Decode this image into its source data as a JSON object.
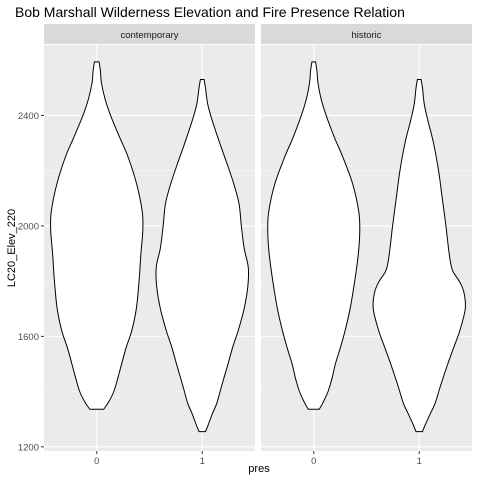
{
  "chart_data": {
    "type": "violin",
    "title": "Bob Marshall Wilderness Elevation and Fire Presence Relation",
    "xlabel": "pres",
    "ylabel": "LC20_Elev_220",
    "facet_variable_values": [
      "contemporary",
      "historic"
    ],
    "categories": [
      "0",
      "1"
    ],
    "ylim": [
      1185,
      2655
    ],
    "yticks": [
      1200,
      1600,
      2000,
      2400
    ],
    "grid": true,
    "panels": [
      {
        "facet": "contemporary",
        "violins": [
          {
            "category": "0",
            "min": 1336,
            "max": 2594,
            "profile": [
              [
                1336,
                0.15
              ],
              [
                1360,
                0.25
              ],
              [
                1400,
                0.37
              ],
              [
                1450,
                0.46
              ],
              [
                1500,
                0.54
              ],
              [
                1560,
                0.64
              ],
              [
                1620,
                0.76
              ],
              [
                1700,
                0.86
              ],
              [
                1800,
                0.92
              ],
              [
                1900,
                0.96
              ],
              [
                1980,
                1.0
              ],
              [
                2050,
                0.99
              ],
              [
                2150,
                0.87
              ],
              [
                2250,
                0.68
              ],
              [
                2320,
                0.5
              ],
              [
                2400,
                0.3
              ],
              [
                2460,
                0.18
              ],
              [
                2520,
                0.1
              ],
              [
                2560,
                0.08
              ],
              [
                2594,
                0.05
              ]
            ]
          },
          {
            "category": "1",
            "min": 1255,
            "max": 2530,
            "profile": [
              [
                1255,
                0.07
              ],
              [
                1280,
                0.13
              ],
              [
                1320,
                0.22
              ],
              [
                1360,
                0.32
              ],
              [
                1420,
                0.42
              ],
              [
                1500,
                0.56
              ],
              [
                1560,
                0.66
              ],
              [
                1620,
                0.78
              ],
              [
                1700,
                0.91
              ],
              [
                1780,
                0.99
              ],
              [
                1850,
                1.0
              ],
              [
                1920,
                0.91
              ],
              [
                2000,
                0.85
              ],
              [
                2080,
                0.8
              ],
              [
                2150,
                0.69
              ],
              [
                2220,
                0.55
              ],
              [
                2300,
                0.38
              ],
              [
                2380,
                0.22
              ],
              [
                2440,
                0.12
              ],
              [
                2500,
                0.07
              ],
              [
                2530,
                0.04
              ]
            ]
          }
        ]
      },
      {
        "facet": "historic",
        "violins": [
          {
            "category": "0",
            "min": 1336,
            "max": 2594,
            "profile": [
              [
                1336,
                0.12
              ],
              [
                1360,
                0.2
              ],
              [
                1400,
                0.31
              ],
              [
                1450,
                0.4
              ],
              [
                1500,
                0.47
              ],
              [
                1560,
                0.58
              ],
              [
                1620,
                0.68
              ],
              [
                1700,
                0.79
              ],
              [
                1800,
                0.89
              ],
              [
                1900,
                0.97
              ],
              [
                1980,
                1.0
              ],
              [
                2050,
                0.98
              ],
              [
                2150,
                0.85
              ],
              [
                2250,
                0.63
              ],
              [
                2320,
                0.45
              ],
              [
                2400,
                0.27
              ],
              [
                2460,
                0.16
              ],
              [
                2520,
                0.09
              ],
              [
                2560,
                0.07
              ],
              [
                2594,
                0.04
              ]
            ]
          },
          {
            "category": "1",
            "min": 1255,
            "max": 2530,
            "profile": [
              [
                1255,
                0.07
              ],
              [
                1280,
                0.13
              ],
              [
                1320,
                0.24
              ],
              [
                1360,
                0.35
              ],
              [
                1420,
                0.46
              ],
              [
                1500,
                0.62
              ],
              [
                1560,
                0.75
              ],
              [
                1620,
                0.88
              ],
              [
                1700,
                1.0
              ],
              [
                1760,
                0.97
              ],
              [
                1800,
                0.87
              ],
              [
                1840,
                0.72
              ],
              [
                1900,
                0.65
              ],
              [
                2000,
                0.58
              ],
              [
                2100,
                0.5
              ],
              [
                2200,
                0.42
              ],
              [
                2300,
                0.31
              ],
              [
                2380,
                0.19
              ],
              [
                2440,
                0.11
              ],
              [
                2500,
                0.07
              ],
              [
                2530,
                0.04
              ]
            ]
          }
        ]
      }
    ]
  }
}
